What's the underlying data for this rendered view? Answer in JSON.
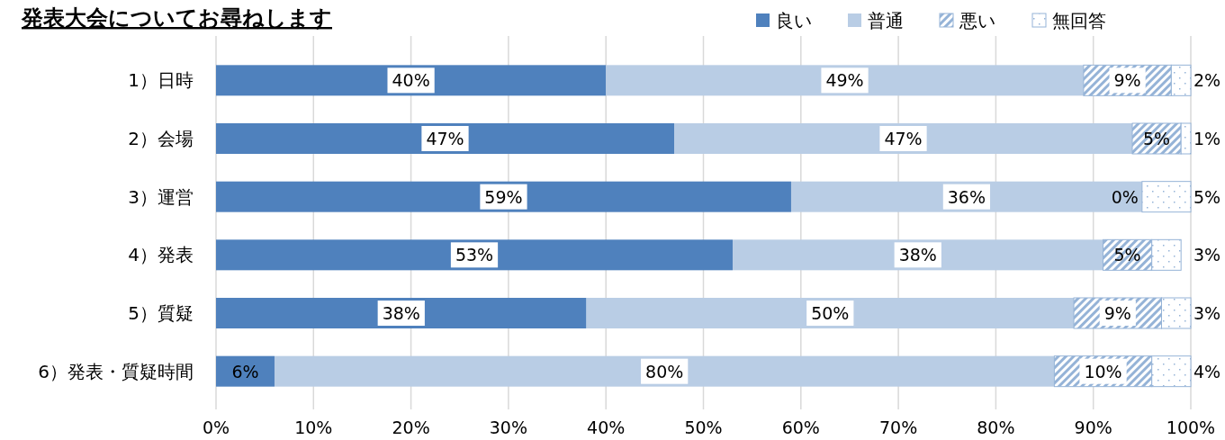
{
  "chart_data": {
    "type": "bar",
    "orientation": "horizontal",
    "stacked": true,
    "title": "発表大会についてお尋ねします",
    "categories": [
      "1）日時",
      "2）会場",
      "3）運営",
      "4）発表",
      "5）質疑",
      "6）発表・質疑時間"
    ],
    "series": [
      {
        "name": "良い",
        "color": "#4f81bd",
        "values": [
          40,
          47,
          59,
          53,
          38,
          6
        ]
      },
      {
        "name": "普通",
        "color": "#b9cde5",
        "values": [
          49,
          47,
          36,
          38,
          50,
          80
        ]
      },
      {
        "name": "悪い",
        "color": "#95b3d7",
        "values": [
          9,
          5,
          0,
          5,
          9,
          10
        ]
      },
      {
        "name": "無回答",
        "color": "#95b3d7",
        "values": [
          2,
          1,
          5,
          3,
          3,
          4
        ]
      }
    ],
    "xlim": [
      0,
      100
    ],
    "xticks": [
      {
        "value": 0,
        "label": "0%"
      },
      {
        "value": 10,
        "label": "10%"
      },
      {
        "value": 20,
        "label": "20%"
      },
      {
        "value": 30,
        "label": "30%"
      },
      {
        "value": 40,
        "label": "40%"
      },
      {
        "value": 50,
        "label": "50%"
      },
      {
        "value": 60,
        "label": "60%"
      },
      {
        "value": 70,
        "label": "70%"
      },
      {
        "value": 80,
        "label": "80%"
      },
      {
        "value": 90,
        "label": "90%"
      },
      {
        "value": 100,
        "label": "100%"
      }
    ],
    "value_labels": [
      [
        "40%",
        "49%",
        "9%",
        "2%"
      ],
      [
        "47%",
        "47%",
        "5%",
        "1%"
      ],
      [
        "59%",
        "36%",
        "0%",
        "5%"
      ],
      [
        "53%",
        "38%",
        "5%",
        "3%"
      ],
      [
        "38%",
        "50%",
        "9%",
        "3%"
      ],
      [
        "6%",
        "80%",
        "10%",
        "4%"
      ]
    ],
    "grid": "x",
    "legend": "top right"
  }
}
